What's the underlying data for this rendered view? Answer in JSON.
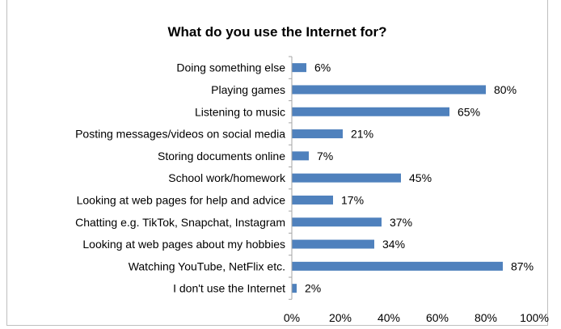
{
  "chart_data": {
    "type": "bar",
    "orientation": "horizontal",
    "title": "What do you use the Internet for?",
    "categories": [
      "Doing something else",
      "Playing games",
      "Listening to music",
      "Posting messages/videos on social media",
      "Storing documents online",
      "School work/homework",
      "Looking at web pages for help and advice",
      "Chatting e.g. TikTok, Snapchat, Instagram",
      "Looking at web pages about my hobbies",
      "Watching YouTube, NetFlix etc.",
      "I don't use the Internet"
    ],
    "values": [
      6,
      80,
      65,
      21,
      7,
      45,
      17,
      37,
      34,
      87,
      2
    ],
    "value_labels": [
      "6%",
      "80%",
      "65%",
      "21%",
      "7%",
      "45%",
      "17%",
      "37%",
      "34%",
      "87%",
      "2%"
    ],
    "xlim": [
      0,
      100
    ],
    "xticks": [
      0,
      20,
      40,
      60,
      80,
      100
    ],
    "xtick_labels": [
      "0%",
      "20%",
      "40%",
      "60%",
      "80%",
      "100%"
    ],
    "xlabel": "",
    "ylabel": "",
    "bar_color": "#4f81bd",
    "grid": false,
    "legend": "none"
  }
}
